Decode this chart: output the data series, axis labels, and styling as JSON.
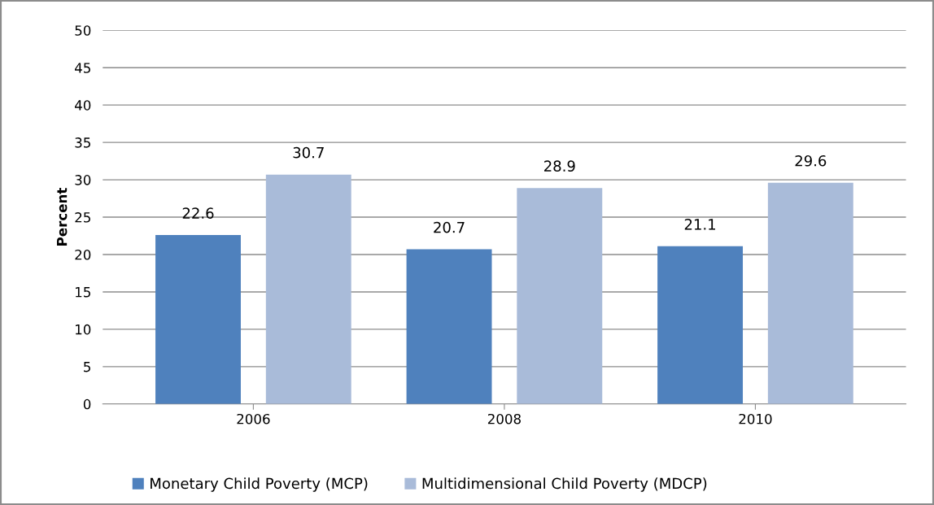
{
  "chart_data": {
    "type": "bar",
    "ylabel": "Percent",
    "categories": [
      "2006",
      "2008",
      "2010"
    ],
    "series": [
      {
        "name": "Monetary Child Poverty (MCP)",
        "color": "#4f81bd",
        "values": [
          22.6,
          20.7,
          21.1
        ]
      },
      {
        "name": "Multidimensional Child Poverty (MDCP)",
        "color": "#a9bbd9",
        "values": [
          30.7,
          28.9,
          29.6
        ]
      }
    ],
    "ylim": [
      0,
      50
    ],
    "yticks": [
      0,
      5,
      10,
      15,
      20,
      25,
      30,
      35,
      40,
      45,
      50
    ],
    "grid": "y",
    "legend": "bottom",
    "data_labels": true
  }
}
